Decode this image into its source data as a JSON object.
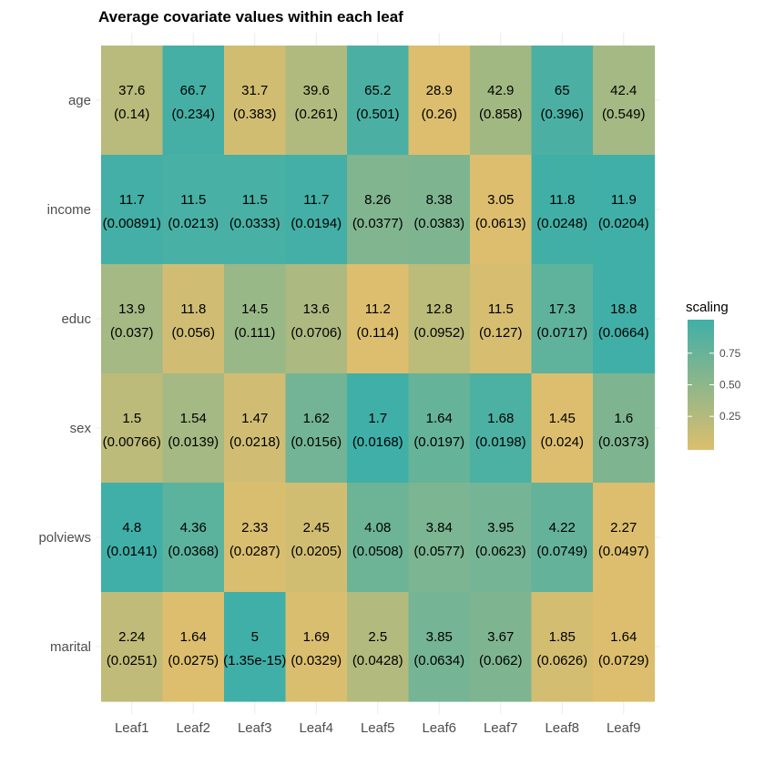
{
  "chart_data": {
    "type": "heatmap",
    "title": "Average covariate values within each leaf",
    "xlabel": "",
    "ylabel": "",
    "x_categories": [
      "Leaf1",
      "Leaf2",
      "Leaf3",
      "Leaf4",
      "Leaf5",
      "Leaf6",
      "Leaf7",
      "Leaf8",
      "Leaf9"
    ],
    "y_categories": [
      "age",
      "income",
      "educ",
      "sex",
      "polviews",
      "marital"
    ],
    "rows": [
      {
        "label": "age",
        "values": [
          "37.6",
          "66.7",
          "31.7",
          "39.6",
          "65.2",
          "28.9",
          "42.9",
          "65",
          "42.4"
        ],
        "se": [
          "(0.14)",
          "(0.234)",
          "(0.383)",
          "(0.261)",
          "(0.501)",
          "(0.26)",
          "(0.858)",
          "(0.396)",
          "(0.549)"
        ],
        "scaling": [
          0.23,
          0.97,
          0.07,
          0.28,
          0.93,
          0.0,
          0.37,
          0.93,
          0.36
        ]
      },
      {
        "label": "income",
        "values": [
          "11.7",
          "11.5",
          "11.5",
          "11.7",
          "8.26",
          "8.38",
          "3.05",
          "11.8",
          "11.9"
        ],
        "se": [
          "(0.00891)",
          "(0.0213)",
          "(0.0333)",
          "(0.0194)",
          "(0.0377)",
          "(0.0383)",
          "(0.0613)",
          "(0.0248)",
          "(0.0204)"
        ],
        "scaling": [
          0.98,
          0.95,
          0.95,
          0.98,
          0.59,
          0.6,
          0.0,
          0.99,
          1.0
        ]
      },
      {
        "label": "educ",
        "values": [
          "13.9",
          "11.8",
          "14.5",
          "13.6",
          "11.2",
          "12.8",
          "11.5",
          "17.3",
          "18.8"
        ],
        "se": [
          "(0.037)",
          "(0.056)",
          "(0.111)",
          "(0.0706)",
          "(0.114)",
          "(0.0952)",
          "(0.127)",
          "(0.0717)",
          "(0.0664)"
        ],
        "scaling": [
          0.36,
          0.08,
          0.43,
          0.31,
          0.0,
          0.21,
          0.04,
          0.8,
          1.0
        ]
      },
      {
        "label": "sex",
        "values": [
          "1.5",
          "1.54",
          "1.47",
          "1.62",
          "1.7",
          "1.64",
          "1.68",
          "1.45",
          "1.6"
        ],
        "se": [
          "(0.00766)",
          "(0.0139)",
          "(0.0218)",
          "(0.0156)",
          "(0.0168)",
          "(0.0197)",
          "(0.0198)",
          "(0.024)",
          "(0.0373)"
        ],
        "scaling": [
          0.2,
          0.36,
          0.08,
          0.68,
          1.0,
          0.76,
          0.92,
          0.0,
          0.6
        ]
      },
      {
        "label": "polviews",
        "values": [
          "4.8",
          "4.36",
          "2.33",
          "2.45",
          "4.08",
          "3.84",
          "3.95",
          "4.22",
          "2.27"
        ],
        "se": [
          "(0.0141)",
          "(0.0368)",
          "(0.0287)",
          "(0.0205)",
          "(0.0508)",
          "(0.0577)",
          "(0.0623)",
          "(0.0749)",
          "(0.0497)"
        ],
        "scaling": [
          1.0,
          0.83,
          0.02,
          0.07,
          0.71,
          0.62,
          0.66,
          0.77,
          0.0
        ]
      },
      {
        "label": "marital",
        "values": [
          "2.24",
          "1.64",
          "5",
          "1.69",
          "2.5",
          "3.85",
          "3.67",
          "1.85",
          "1.64"
        ],
        "se": [
          "(0.0251)",
          "(0.0275)",
          "(1.35e-15)",
          "(0.0329)",
          "(0.0428)",
          "(0.0634)",
          "(0.062)",
          "(0.0626)",
          "(0.0729)"
        ],
        "scaling": [
          0.18,
          0.0,
          1.0,
          0.01,
          0.26,
          0.66,
          0.6,
          0.06,
          0.0
        ]
      }
    ],
    "legend": {
      "title": "scaling",
      "position": "right",
      "ticks": [
        "0.25",
        "0.50",
        "0.75"
      ],
      "tick_values": [
        0.25,
        0.5,
        0.75
      ],
      "range": [
        0,
        1
      ]
    },
    "colors": {
      "low": "#dcbe6e",
      "high": "#40afa7",
      "grid": "#ebebeb"
    },
    "grid": true
  }
}
